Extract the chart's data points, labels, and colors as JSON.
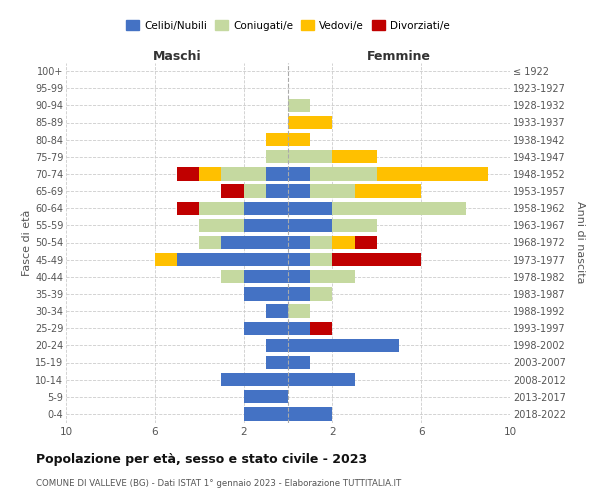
{
  "age_groups": [
    "0-4",
    "5-9",
    "10-14",
    "15-19",
    "20-24",
    "25-29",
    "30-34",
    "35-39",
    "40-44",
    "45-49",
    "50-54",
    "55-59",
    "60-64",
    "65-69",
    "70-74",
    "75-79",
    "80-84",
    "85-89",
    "90-94",
    "95-99",
    "100+"
  ],
  "birth_years": [
    "2018-2022",
    "2013-2017",
    "2008-2012",
    "2003-2007",
    "1998-2002",
    "1993-1997",
    "1988-1992",
    "1983-1987",
    "1978-1982",
    "1973-1977",
    "1968-1972",
    "1963-1967",
    "1958-1962",
    "1953-1957",
    "1948-1952",
    "1943-1947",
    "1938-1942",
    "1933-1937",
    "1928-1932",
    "1923-1927",
    "≤ 1922"
  ],
  "male": {
    "celibi": [
      2,
      2,
      3,
      1,
      1,
      2,
      1,
      2,
      2,
      5,
      3,
      2,
      2,
      1,
      1,
      0,
      0,
      0,
      0,
      0,
      0
    ],
    "coniugati": [
      0,
      0,
      0,
      0,
      0,
      0,
      0,
      0,
      1,
      0,
      1,
      2,
      2,
      1,
      2,
      1,
      0,
      0,
      0,
      0,
      0
    ],
    "vedovi": [
      0,
      0,
      0,
      0,
      0,
      0,
      0,
      0,
      0,
      1,
      0,
      0,
      0,
      0,
      1,
      0,
      1,
      0,
      0,
      0,
      0
    ],
    "divorziati": [
      0,
      0,
      0,
      0,
      0,
      0,
      0,
      0,
      0,
      0,
      0,
      0,
      1,
      1,
      1,
      0,
      0,
      0,
      0,
      0,
      0
    ]
  },
  "female": {
    "nubili": [
      2,
      0,
      3,
      1,
      5,
      1,
      0,
      1,
      1,
      1,
      1,
      2,
      2,
      1,
      1,
      0,
      0,
      0,
      0,
      0,
      0
    ],
    "coniugate": [
      0,
      0,
      0,
      0,
      0,
      0,
      1,
      1,
      2,
      1,
      1,
      2,
      6,
      2,
      3,
      2,
      0,
      0,
      1,
      0,
      0
    ],
    "vedove": [
      0,
      0,
      0,
      0,
      0,
      0,
      0,
      0,
      0,
      0,
      1,
      0,
      0,
      3,
      5,
      2,
      1,
      2,
      0,
      0,
      0
    ],
    "divorziate": [
      0,
      0,
      0,
      0,
      0,
      1,
      0,
      0,
      0,
      4,
      1,
      0,
      0,
      0,
      0,
      0,
      0,
      0,
      0,
      0,
      0
    ]
  },
  "colors": {
    "celibi_nubili": "#4472c4",
    "coniugati": "#c5d9a0",
    "vedovi": "#ffc000",
    "divorziati": "#c00000"
  },
  "xlim": 10,
  "title": "Popolazione per età, sesso e stato civile - 2023",
  "subtitle": "COMUNE DI VALLEVE (BG) - Dati ISTAT 1° gennaio 2023 - Elaborazione TUTTITALIA.IT",
  "xlabel_left": "Maschi",
  "xlabel_right": "Femmine",
  "ylabel_left": "Fasce di età",
  "ylabel_right": "Anni di nascita",
  "legend_labels": [
    "Celibi/Nubili",
    "Coniugati/e",
    "Vedovi/e",
    "Divorziati/e"
  ]
}
